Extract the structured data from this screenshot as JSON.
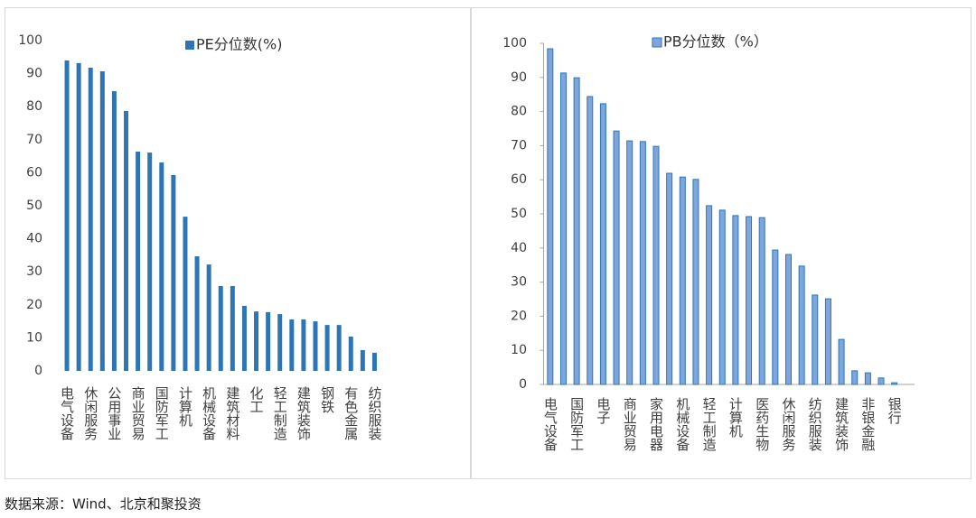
{
  "chart_data": [
    {
      "type": "bar",
      "categories": [
        "电气设备",
        null,
        "休闲服务",
        null,
        "公用事业",
        null,
        "商业贸易",
        null,
        "国防军工",
        null,
        "计算机",
        null,
        "机械设备",
        null,
        "建筑材料",
        null,
        "化工",
        null,
        "轻工制造",
        null,
        "建筑装饰",
        null,
        "钢铁",
        null,
        "有色金属",
        null,
        "纺织服装"
      ],
      "series": [
        {
          "name": "PE分位数(%)",
          "color": "#2e75b6",
          "values": [
            94,
            93.2,
            91.8,
            90.7,
            84.7,
            78.7,
            66.4,
            66.1,
            63.1,
            59.3,
            46.7,
            34.7,
            32.2,
            25.7,
            25.7,
            19.7,
            18,
            17.8,
            17.2,
            15.6,
            15.6,
            15,
            13.9,
            13.9,
            10.4,
            6.3,
            5.5
          ]
        }
      ],
      "ylim": [
        0,
        100
      ],
      "yticks": [
        0,
        10,
        20,
        30,
        40,
        50,
        60,
        70,
        80,
        90,
        100
      ],
      "legend": "top",
      "axis_lines": false
    },
    {
      "type": "bar",
      "categories": [
        "电气设备",
        null,
        "国防军工",
        null,
        "电子",
        null,
        "商业贸易",
        null,
        "家用电器",
        null,
        "机械设备",
        null,
        "轻工制造",
        null,
        "计算机",
        null,
        "医药生物",
        null,
        "休闲服务",
        null,
        "纺织服装",
        null,
        "建筑装饰",
        null,
        "非银金融",
        null,
        "银行"
      ],
      "series": [
        {
          "name": "PB分位数（%）",
          "color": "#7ea6dc",
          "values": [
            98.4,
            91.3,
            89.9,
            84.4,
            82.3,
            74.3,
            71.4,
            71.2,
            69.8,
            61.9,
            60.8,
            60.1,
            52.4,
            51.1,
            49.5,
            49.2,
            48.9,
            39.4,
            38.1,
            34.7,
            26.2,
            25.1,
            13.2,
            4,
            3.4,
            1.9,
            0.5
          ]
        }
      ],
      "ylim": [
        0,
        100
      ],
      "yticks": [
        0,
        10,
        20,
        30,
        40,
        50,
        60,
        70,
        80,
        90,
        100
      ],
      "legend": "top",
      "axis_lines": true
    }
  ],
  "source": "数据来源：Wind、北京和聚投资"
}
